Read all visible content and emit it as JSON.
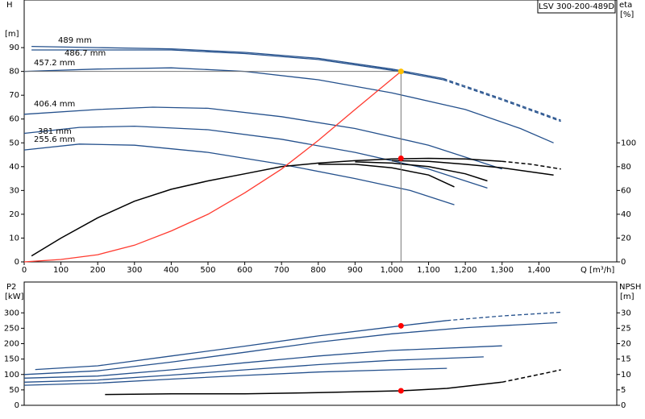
{
  "chart_data": [
    {
      "type": "line",
      "ylabel": "H",
      "yunit": "[m]",
      "y2label": "eta",
      "y2unit": "[%]",
      "xlabel": "Q [m³/h]",
      "legend": "LSV 300-200-489D",
      "xlim": [
        0,
        1612
      ],
      "ylim": [
        0,
        110
      ],
      "y2lim": [
        0,
        220
      ],
      "xticks": [
        0,
        100,
        200,
        300,
        400,
        500,
        600,
        700,
        800,
        900,
        {
          "value": 1000,
          "label": "1,000"
        },
        {
          "value": 1100,
          "label": "1,100"
        },
        {
          "value": 1200,
          "label": "1,200"
        },
        {
          "value": 1300,
          "label": "1,300"
        },
        {
          "value": 1400,
          "label": "1,400"
        }
      ],
      "yticks": [
        0,
        10,
        20,
        30,
        40,
        50,
        60,
        70,
        80,
        90
      ],
      "y2ticks": [
        0,
        20,
        40,
        60,
        80,
        100
      ],
      "series": [
        {
          "name": "489 mm",
          "color": "#24508c",
          "x": [
            20,
            200,
            400,
            600,
            800,
            1000,
            1140
          ],
          "values": [
            90.5,
            90,
            89.5,
            88,
            85.5,
            81,
            77
          ]
        },
        {
          "color": "#24508c",
          "dashed": true,
          "x": [
            1140,
            1300,
            1460
          ],
          "values": [
            77,
            68.5,
            59.5
          ]
        },
        {
          "name": "486.7 mm",
          "color": "#24508c",
          "x": [
            20,
            200,
            400,
            600,
            800,
            1000,
            1140
          ],
          "values": [
            89,
            89,
            89,
            87.5,
            85,
            80.5,
            76.5
          ]
        },
        {
          "color": "#24508c",
          "dashed": true,
          "x": [
            1140,
            1300,
            1460
          ],
          "values": [
            76.5,
            68,
            59
          ]
        },
        {
          "name": "457.2 mm",
          "color": "#24508c",
          "x": [
            0,
            200,
            400,
            600,
            800,
            1000,
            1200,
            1350,
            1440
          ],
          "values": [
            80,
            81,
            81.5,
            80,
            76.5,
            71,
            64,
            56,
            50
          ]
        },
        {
          "name": "406.4 mm",
          "color": "#24508c",
          "x": [
            0,
            200,
            350,
            500,
            700,
            900,
            1100,
            1300
          ],
          "values": [
            62,
            64,
            65,
            64.5,
            61,
            56,
            49,
            39
          ]
        },
        {
          "name": "381 mm",
          "color": "#24508c",
          "x": [
            0,
            150,
            300,
            500,
            700,
            900,
            1100,
            1260
          ],
          "values": [
            54,
            56.5,
            57,
            55.5,
            51.5,
            46,
            39,
            31
          ]
        },
        {
          "name": "255.6 mm",
          "color": "#24508c",
          "x": [
            0,
            150,
            300,
            500,
            700,
            900,
            1050,
            1170
          ],
          "values": [
            47,
            49.5,
            49,
            46,
            41,
            35,
            30,
            24
          ]
        },
        {
          "color": "#000000",
          "axis": "y2",
          "x": [
            20,
            100,
            200,
            300,
            400,
            500,
            600,
            700,
            800,
            900,
            1000,
            1100,
            1200,
            1300
          ],
          "values": [
            5,
            20,
            37,
            51,
            61,
            68,
            74,
            80,
            83,
            85,
            86.5,
            87,
            86.5,
            84.5
          ]
        },
        {
          "color": "#000000",
          "axis": "y2",
          "dashed": true,
          "x": [
            1300,
            1380,
            1460
          ],
          "values": [
            84.5,
            82,
            78
          ]
        },
        {
          "color": "#000000",
          "axis": "y2",
          "x": [
            800,
            900,
            1000,
            1100,
            1170
          ],
          "values": [
            82,
            82,
            79,
            73,
            63
          ]
        },
        {
          "color": "#000000",
          "axis": "y2",
          "x": [
            900,
            1000,
            1100,
            1200,
            1260
          ],
          "values": [
            84,
            83,
            80,
            74,
            68
          ]
        },
        {
          "color": "#000000",
          "axis": "y2",
          "x": [
            1000,
            1100,
            1200,
            1300,
            1440
          ],
          "values": [
            85,
            84.5,
            82,
            79,
            73
          ]
        },
        {
          "color": "#ff3b30",
          "x": [
            0,
            100,
            200,
            300,
            400,
            500,
            600,
            700,
            800,
            900,
            1025
          ],
          "values": [
            0,
            1,
            3,
            7,
            13,
            20,
            29,
            39,
            51,
            64,
            80
          ]
        }
      ],
      "markers": [
        {
          "x": 1025,
          "value": 80,
          "color": "#ffc000",
          "guides": true
        },
        {
          "x": 1025,
          "value": 87,
          "axis": "y2",
          "color": "#ff0000"
        }
      ]
    },
    {
      "type": "line",
      "ylabel": "P2",
      "yunit": "[kW]",
      "y2label": "NPSH",
      "y2unit": "[m]",
      "xlim": [
        0,
        1612
      ],
      "ylim": [
        0,
        400
      ],
      "y2lim": [
        0,
        40
      ],
      "yticks": [
        0,
        50,
        100,
        150,
        200,
        250,
        300
      ],
      "y2ticks": [
        0,
        5,
        10,
        15,
        20,
        25,
        30
      ],
      "series": [
        {
          "color": "#24508c",
          "x": [
            30,
            200,
            400,
            600,
            800,
            1025,
            1150
          ],
          "values": [
            116,
            128,
            160,
            192,
            225,
            258,
            275
          ]
        },
        {
          "color": "#24508c",
          "dashed": true,
          "x": [
            1150,
            1300,
            1460
          ],
          "values": [
            275,
            290,
            302
          ]
        },
        {
          "color": "#24508c",
          "x": [
            0,
            200,
            400,
            600,
            800,
            1000,
            1200,
            1450
          ],
          "values": [
            100,
            112,
            140,
            172,
            205,
            232,
            252,
            268
          ]
        },
        {
          "color": "#24508c",
          "x": [
            0,
            200,
            400,
            600,
            800,
            1000,
            1300
          ],
          "values": [
            88,
            95,
            115,
            138,
            160,
            178,
            193
          ]
        },
        {
          "color": "#24508c",
          "x": [
            0,
            200,
            400,
            600,
            800,
            1000,
            1250
          ],
          "values": [
            75,
            82,
            98,
            115,
            132,
            146,
            157
          ]
        },
        {
          "color": "#24508c",
          "x": [
            0,
            200,
            400,
            600,
            800,
            1000,
            1150
          ],
          "values": [
            65,
            72,
            85,
            97,
            108,
            115,
            120
          ]
        },
        {
          "color": "#000000",
          "axis": "y2",
          "x": [
            220,
            400,
            600,
            800,
            1025,
            1150,
            1300
          ],
          "values": [
            3.5,
            3.7,
            3.7,
            4.1,
            4.7,
            5.5,
            7.5
          ]
        },
        {
          "color": "#000000",
          "axis": "y2",
          "dashed": true,
          "x": [
            1300,
            1380,
            1460
          ],
          "values": [
            7.5,
            9.5,
            11.5
          ]
        }
      ],
      "markers": [
        {
          "x": 1025,
          "value": 258,
          "color": "#ff0000"
        },
        {
          "x": 1025,
          "value": 4.7,
          "axis": "y2",
          "color": "#ff0000"
        }
      ]
    }
  ]
}
